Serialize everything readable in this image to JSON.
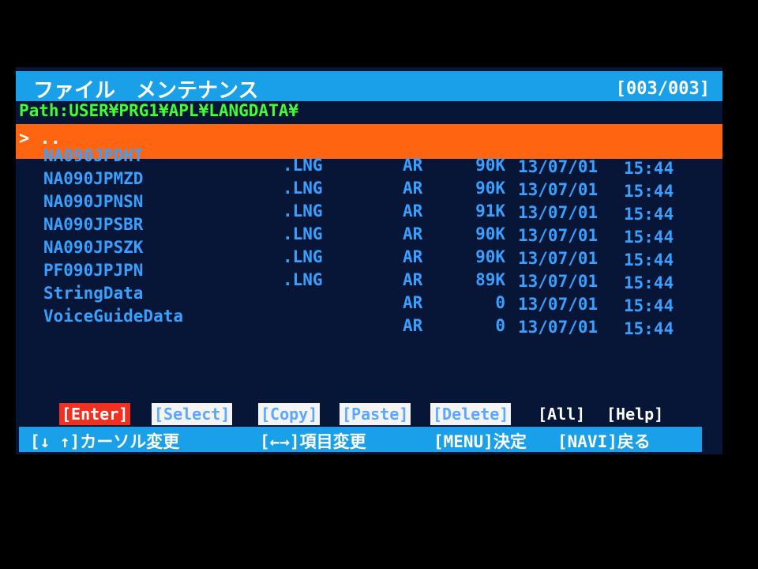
{
  "header": {
    "title": "ファイル　メンテナンス",
    "page": "[003/003]"
  },
  "path": "Path:USER¥PRG1¥APL¥LANGDATA¥",
  "selected": "> ..",
  "files": [
    {
      "name": "NA090JPDHT",
      "ext": ".LNG",
      "attr": "AR",
      "size": "90K",
      "date": "13/07/01",
      "time": "15:44"
    },
    {
      "name": "NA090JPMZD",
      "ext": ".LNG",
      "attr": "AR",
      "size": "90K",
      "date": "13/07/01",
      "time": "15:44"
    },
    {
      "name": "NA090JPNSN",
      "ext": ".LNG",
      "attr": "AR",
      "size": "91K",
      "date": "13/07/01",
      "time": "15:44"
    },
    {
      "name": "NA090JPSBR",
      "ext": ".LNG",
      "attr": "AR",
      "size": "90K",
      "date": "13/07/01",
      "time": "15:44"
    },
    {
      "name": "NA090JPSZK",
      "ext": ".LNG",
      "attr": "AR",
      "size": "90K",
      "date": "13/07/01",
      "time": "15:44"
    },
    {
      "name": "PF090JPJPN",
      "ext": ".LNG",
      "attr": "AR",
      "size": "89K",
      "date": "13/07/01",
      "time": "15:44"
    },
    {
      "name": "StringData",
      "ext": null,
      "attr": "AR",
      "size": "0",
      "date": "13/07/01",
      "time": "15:44"
    },
    {
      "name": "VoiceGuideData",
      "ext": null,
      "attr": "AR",
      "size": "0",
      "date": "13/07/01",
      "time": "15:44"
    }
  ],
  "buttons": [
    "[Enter]",
    "[Select]",
    "[Copy]",
    "[Paste]",
    "[Delete]",
    "[All]",
    "[Help]"
  ],
  "help": [
    "[↓ ↑]カーソル変更",
    "[←→]項目変更",
    "[MENU]決定",
    "[NAVI]戻る"
  ]
}
